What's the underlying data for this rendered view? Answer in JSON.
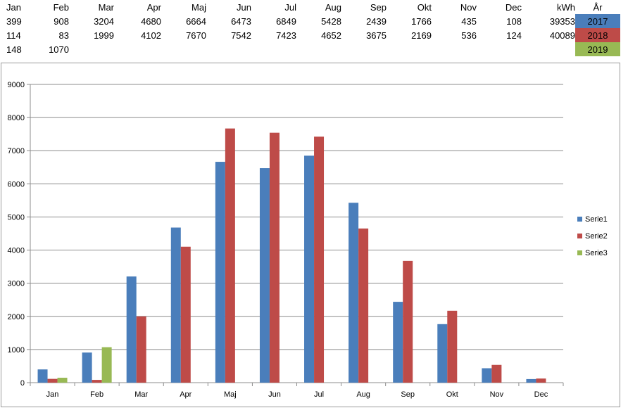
{
  "table": {
    "headers": [
      "Jan",
      "Feb",
      "Mar",
      "Apr",
      "Maj",
      "Jun",
      "Jul",
      "Aug",
      "Sep",
      "Okt",
      "Nov",
      "Dec",
      "kWh",
      "År"
    ],
    "rows": [
      {
        "cells": [
          "399",
          "908",
          "3204",
          "4680",
          "6664",
          "6473",
          "6849",
          "5428",
          "2439",
          "1766",
          "435",
          "108",
          "39353"
        ],
        "year": "2017",
        "color": "#4a7ebb"
      },
      {
        "cells": [
          "114",
          "83",
          "1999",
          "4102",
          "7670",
          "7542",
          "7423",
          "4652",
          "3675",
          "2169",
          "536",
          "124",
          "40089"
        ],
        "year": "2018",
        "color": "#be4b48"
      },
      {
        "cells": [
          "148",
          "1070",
          "",
          "",
          "",
          "",
          "",
          "",
          "",
          "",
          "",
          "",
          ""
        ],
        "year": "2019",
        "color": "#98b954"
      }
    ]
  },
  "chart_data": {
    "type": "bar",
    "categories": [
      "Jan",
      "Feb",
      "Mar",
      "Apr",
      "Maj",
      "Jun",
      "Jul",
      "Aug",
      "Sep",
      "Okt",
      "Nov",
      "Dec"
    ],
    "series": [
      {
        "name": "Serie1",
        "color": "#4a7ebb",
        "values": [
          399,
          908,
          3204,
          4680,
          6664,
          6473,
          6849,
          5428,
          2439,
          1766,
          435,
          108
        ]
      },
      {
        "name": "Serie2",
        "color": "#be4b48",
        "values": [
          114,
          83,
          1999,
          4102,
          7670,
          7542,
          7423,
          4652,
          3675,
          2169,
          536,
          124
        ]
      },
      {
        "name": "Serie3",
        "color": "#98b954",
        "values": [
          148,
          1070,
          null,
          null,
          null,
          null,
          null,
          null,
          null,
          null,
          null,
          null
        ]
      }
    ],
    "ylim": [
      0,
      9000
    ],
    "yticks": [
      0,
      1000,
      2000,
      3000,
      4000,
      5000,
      6000,
      7000,
      8000,
      9000
    ],
    "grid": true,
    "legend": "right"
  }
}
